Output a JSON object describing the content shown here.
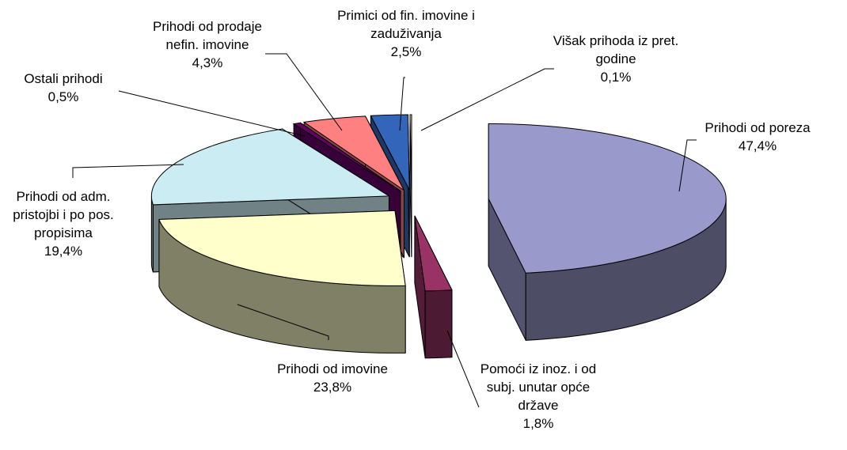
{
  "chart_data": {
    "type": "pie3d",
    "categories": [
      "Prihodi od poreza",
      "Pomoći iz inoz. i od subj. unutar opće države",
      "Prihodi od imovine",
      "Prihodi od adm. pristojbi i po pos. propisima",
      "Ostali prihodi",
      "Prihodi od prodaje nefin. imovine",
      "Primici od fin. imovine i zaduživanja",
      "Višak prihoda iz pret. godine"
    ],
    "values": [
      47.4,
      1.8,
      23.8,
      19.4,
      0.5,
      4.3,
      2.5,
      0.1
    ],
    "value_labels": [
      "47,4%",
      "1,8%",
      "23,8%",
      "19,4%",
      "0,5%",
      "4,3%",
      "2,5%",
      "0,1%"
    ],
    "colors": [
      "#9999cc",
      "#993366",
      "#ffffcc",
      "#ccecf4",
      "#660066",
      "#ff8080",
      "#3366bb",
      "#ffffff"
    ]
  }
}
